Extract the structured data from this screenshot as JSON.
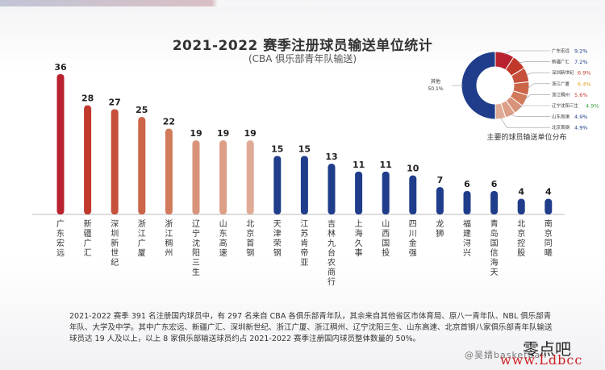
{
  "chart_data": [
    {
      "type": "bar",
      "title": "2021-2022 赛季注册球员输送单位统计",
      "subtitle": "(CBA 俱乐部青年队输送)",
      "categories": [
        "广东宏远",
        "新疆广汇",
        "深圳新世纪",
        "浙江广厦",
        "浙江稠州",
        "辽宁沈阳三生",
        "山东高速",
        "北京首钢",
        "天津荣钢",
        "江苏肯帝亚",
        "吉林九台农商行",
        "上海久事",
        "山西国投",
        "四川金强",
        "龙狮",
        "福建浔兴",
        "青岛国信海天",
        "北京控股",
        "南京同曦"
      ],
      "values": [
        36,
        28,
        27,
        25,
        22,
        19,
        19,
        19,
        15,
        15,
        13,
        11,
        11,
        10,
        7,
        6,
        6,
        4,
        4
      ],
      "colors": [
        "#b8222e",
        "#c0392b",
        "#c6503a",
        "#cc6448",
        "#d27a5c",
        "#d8937a",
        "#dd9f88",
        "#e0ab96",
        "#1f3d8a",
        "#1f3d8a",
        "#1f3d8a",
        "#1f3d8a",
        "#1f3d8a",
        "#1f3d8a",
        "#1f3d8a",
        "#1f3d8a",
        "#1f3d8a",
        "#1f3d8a",
        "#1f3d8a"
      ],
      "ylim": [
        0,
        36
      ]
    },
    {
      "type": "pie",
      "title": "主要的球员输送单位分布",
      "slices": [
        {
          "label": "广东宏远",
          "value": 9.2,
          "value_label": "9.2%",
          "color": "#b8222e",
          "label_color": "#1f3d8a"
        },
        {
          "label": "新疆广汇",
          "value": 7.2,
          "value_label": "7.2%",
          "color": "#c0392b",
          "label_color": "#1f3d8a"
        },
        {
          "label": "深圳新世纪",
          "value": 6.9,
          "value_label": "6.9%",
          "color": "#c6503a",
          "label_color": "#c0392b"
        },
        {
          "label": "浙江广厦",
          "value": 6.4,
          "value_label": "6.4%",
          "color": "#cc6448",
          "label_color": "#e0a020"
        },
        {
          "label": "浙江稠州",
          "value": 5.6,
          "value_label": "5.6%",
          "color": "#d27a5c",
          "label_color": "#c0392b"
        },
        {
          "label": "辽宁沈阳三生",
          "value": 4.9,
          "value_label": "4.9%",
          "color": "#d8937a",
          "label_color": "#3a9a3a"
        },
        {
          "label": "山东高速",
          "value": 4.9,
          "value_label": "4.9%",
          "color": "#dd9f88",
          "label_color": "#1f3d8a"
        },
        {
          "label": "北京首钢",
          "value": 4.9,
          "value_label": "4.9%",
          "color": "#e0ab96",
          "label_color": "#1f3d8a"
        },
        {
          "label": "其他",
          "value": 50.1,
          "value_label": "50.1%",
          "color": "#1f3d8a",
          "label_color": "#333333"
        }
      ]
    }
  ],
  "footnote": "2021-2022 赛季 391 名注册国内球员中，有 297 名来自 CBA 各俱乐部青年队，其余来自其他省区市体育局、原八一青年队、NBL 俱乐部青年队、大学及中学。其中广东宏远、新疆广汇、深圳新世纪、浙江广厦、浙江稠州、辽宁沈阳三生、山东高速、北京首钢八家俱乐部青年队输送球员达 19 人及以上，以上 8 家俱乐部输送球员约占 2021-2022 赛季注册国内球员整体数量的 50%。",
  "watermark": {
    "weibo": "@吴婧basketball",
    "site_cn": "零点吧",
    "site_url": "www.Ldbcc"
  }
}
